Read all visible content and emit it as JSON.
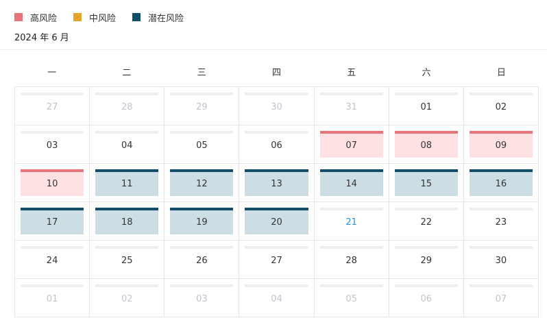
{
  "legend": [
    {
      "label": "高风险",
      "color": "#e8737a"
    },
    {
      "label": "中风险",
      "color": "#e5a52a"
    },
    {
      "label": "潜在风险",
      "color": "#104e6b"
    }
  ],
  "month_title": "2024 年 6 月",
  "weekdays": [
    "一",
    "二",
    "三",
    "四",
    "五",
    "六",
    "日"
  ],
  "days": [
    {
      "label": "27",
      "other": true
    },
    {
      "label": "28",
      "other": true
    },
    {
      "label": "29",
      "other": true
    },
    {
      "label": "30",
      "other": true
    },
    {
      "label": "31",
      "other": true
    },
    {
      "label": "01"
    },
    {
      "label": "02"
    },
    {
      "label": "03"
    },
    {
      "label": "04"
    },
    {
      "label": "05"
    },
    {
      "label": "06"
    },
    {
      "label": "07",
      "risk": "high"
    },
    {
      "label": "08",
      "risk": "high"
    },
    {
      "label": "09",
      "risk": "high"
    },
    {
      "label": "10",
      "risk": "high"
    },
    {
      "label": "11",
      "risk": "potential"
    },
    {
      "label": "12",
      "risk": "potential"
    },
    {
      "label": "13",
      "risk": "potential"
    },
    {
      "label": "14",
      "risk": "potential"
    },
    {
      "label": "15",
      "risk": "potential"
    },
    {
      "label": "16",
      "risk": "potential"
    },
    {
      "label": "17",
      "risk": "potential"
    },
    {
      "label": "18",
      "risk": "potential"
    },
    {
      "label": "19",
      "risk": "potential"
    },
    {
      "label": "20",
      "risk": "potential"
    },
    {
      "label": "21",
      "today": true
    },
    {
      "label": "22"
    },
    {
      "label": "23"
    },
    {
      "label": "24"
    },
    {
      "label": "25"
    },
    {
      "label": "26"
    },
    {
      "label": "27"
    },
    {
      "label": "28"
    },
    {
      "label": "29"
    },
    {
      "label": "30"
    },
    {
      "label": "01",
      "other": true
    },
    {
      "label": "02",
      "other": true
    },
    {
      "label": "03",
      "other": true
    },
    {
      "label": "04",
      "other": true
    },
    {
      "label": "05",
      "other": true
    },
    {
      "label": "06",
      "other": true
    },
    {
      "label": "07",
      "other": true
    }
  ]
}
